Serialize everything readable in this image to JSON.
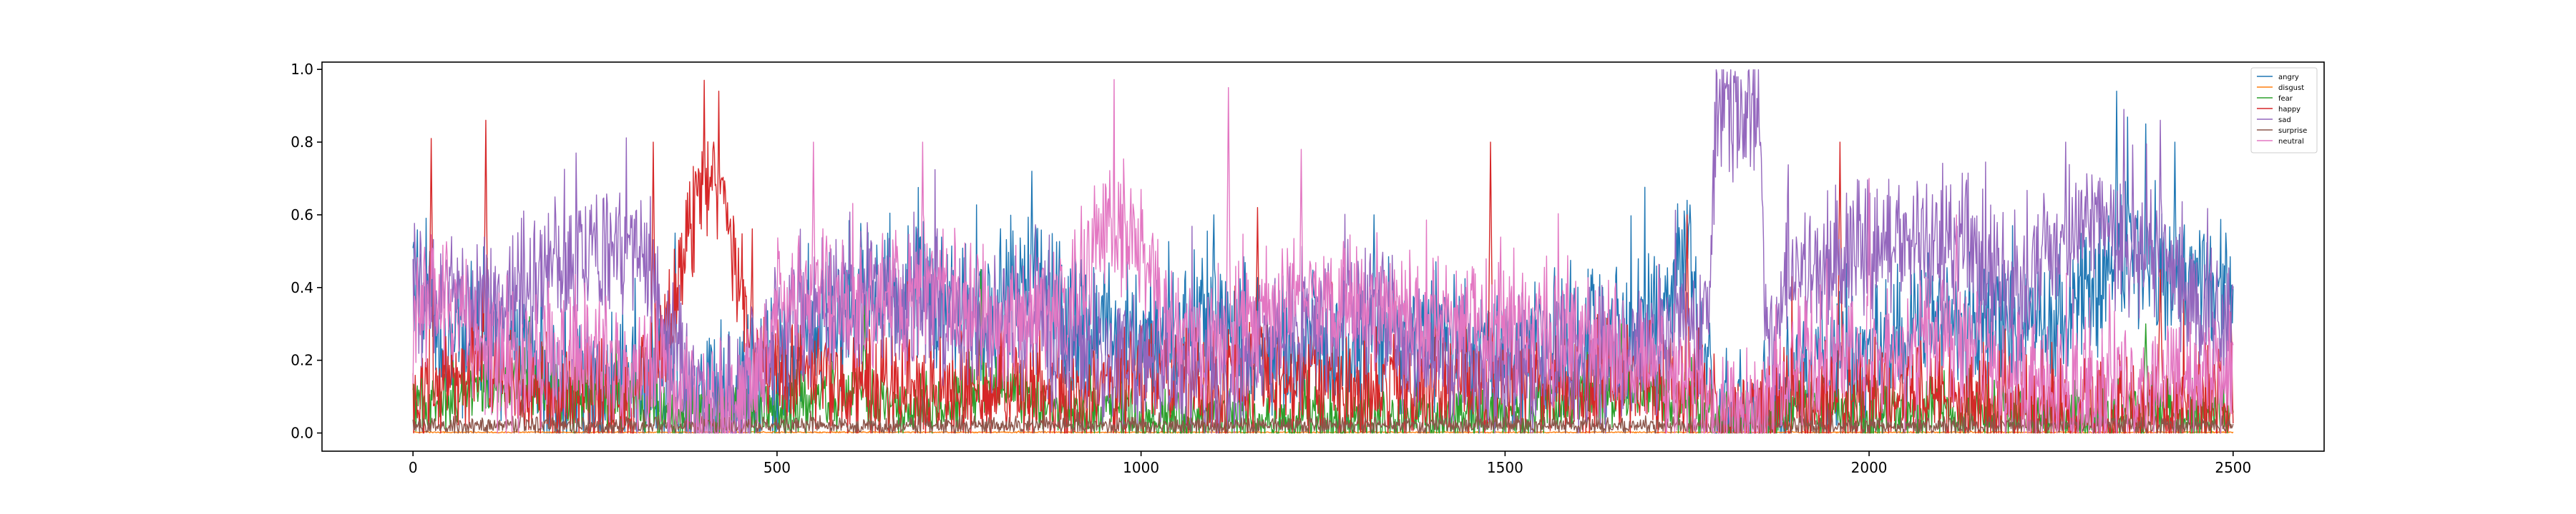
{
  "chart_data": {
    "type": "line",
    "title": "",
    "xlabel": "",
    "ylabel": "",
    "xlim": [
      -125,
      2625
    ],
    "ylim": [
      -0.05,
      1.02
    ],
    "n_points": 2501,
    "x_ticks": [
      0,
      500,
      1000,
      1500,
      2000,
      2500
    ],
    "x_tick_labels": [
      "0",
      "500",
      "1000",
      "1500",
      "2000",
      "2500"
    ],
    "y_ticks": [
      0.0,
      0.2,
      0.4,
      0.6,
      0.8,
      1.0
    ],
    "y_tick_labels": [
      "0.0",
      "0.2",
      "0.4",
      "0.6",
      "0.8",
      "1.0"
    ],
    "grid": false,
    "legend_position": "top-right",
    "series": [
      {
        "name": "angry",
        "color": "#1f77b4",
        "knots": [
          [
            0,
            0.45
          ],
          [
            50,
            0.2
          ],
          [
            100,
            0.3
          ],
          [
            150,
            0.2
          ],
          [
            200,
            0.1
          ],
          [
            300,
            0.15
          ],
          [
            400,
            0.08
          ],
          [
            500,
            0.15
          ],
          [
            600,
            0.35
          ],
          [
            700,
            0.4
          ],
          [
            800,
            0.3
          ],
          [
            850,
            0.45
          ],
          [
            900,
            0.3
          ],
          [
            1000,
            0.25
          ],
          [
            1100,
            0.3
          ],
          [
            1200,
            0.2
          ],
          [
            1300,
            0.22
          ],
          [
            1400,
            0.25
          ],
          [
            1500,
            0.22
          ],
          [
            1600,
            0.25
          ],
          [
            1700,
            0.3
          ],
          [
            1750,
            0.45
          ],
          [
            1790,
            0.03
          ],
          [
            1850,
            0.03
          ],
          [
            1900,
            0.15
          ],
          [
            2000,
            0.2
          ],
          [
            2100,
            0.28
          ],
          [
            2200,
            0.3
          ],
          [
            2300,
            0.35
          ],
          [
            2350,
            0.5
          ],
          [
            2400,
            0.4
          ],
          [
            2450,
            0.42
          ],
          [
            2500,
            0.35
          ]
        ],
        "noise": 0.16,
        "spikes": [
          [
            360,
            0.55
          ],
          [
            850,
            0.72
          ],
          [
            1100,
            0.6
          ],
          [
            1320,
            0.6
          ],
          [
            1750,
            0.64
          ],
          [
            2340,
            0.94
          ],
          [
            2380,
            0.85
          ],
          [
            2420,
            0.8
          ],
          [
            2490,
            0.55
          ]
        ]
      },
      {
        "name": "disgust",
        "color": "#ff7f0e",
        "knots": [
          [
            0,
            0.002
          ],
          [
            2500,
            0.002
          ]
        ],
        "noise": 0.0015,
        "spikes": []
      },
      {
        "name": "fear",
        "color": "#2ca02c",
        "knots": [
          [
            0,
            0.08
          ],
          [
            100,
            0.12
          ],
          [
            150,
            0.15
          ],
          [
            200,
            0.1
          ],
          [
            300,
            0.08
          ],
          [
            400,
            0.04
          ],
          [
            500,
            0.06
          ],
          [
            600,
            0.1
          ],
          [
            650,
            0.08
          ],
          [
            700,
            0.06
          ],
          [
            800,
            0.12
          ],
          [
            900,
            0.07
          ],
          [
            1000,
            0.04
          ],
          [
            1100,
            0.04
          ],
          [
            1200,
            0.03
          ],
          [
            1300,
            0.03
          ],
          [
            1400,
            0.04
          ],
          [
            1500,
            0.05
          ],
          [
            1600,
            0.1
          ],
          [
            1700,
            0.12
          ],
          [
            1800,
            0.03
          ],
          [
            1850,
            0.02
          ],
          [
            1900,
            0.08
          ],
          [
            2000,
            0.05
          ],
          [
            2100,
            0.06
          ],
          [
            2200,
            0.05
          ],
          [
            2300,
            0.04
          ],
          [
            2400,
            0.06
          ],
          [
            2500,
            0.05
          ]
        ],
        "noise": 0.07,
        "spikes": [
          [
            160,
            0.32
          ],
          [
            620,
            0.35
          ],
          [
            780,
            0.45
          ],
          [
            1660,
            0.3
          ],
          [
            1940,
            0.2
          ],
          [
            2380,
            0.3
          ]
        ]
      },
      {
        "name": "happy",
        "color": "#d62728",
        "knots": [
          [
            0,
            0.05
          ],
          [
            50,
            0.15
          ],
          [
            100,
            0.2
          ],
          [
            200,
            0.1
          ],
          [
            300,
            0.1
          ],
          [
            350,
            0.3
          ],
          [
            380,
            0.55
          ],
          [
            410,
            0.75
          ],
          [
            430,
            0.6
          ],
          [
            470,
            0.2
          ],
          [
            500,
            0.15
          ],
          [
            600,
            0.12
          ],
          [
            700,
            0.1
          ],
          [
            800,
            0.12
          ],
          [
            900,
            0.1
          ],
          [
            1000,
            0.15
          ],
          [
            1100,
            0.12
          ],
          [
            1200,
            0.15
          ],
          [
            1300,
            0.12
          ],
          [
            1400,
            0.15
          ],
          [
            1500,
            0.15
          ],
          [
            1600,
            0.12
          ],
          [
            1700,
            0.15
          ],
          [
            1800,
            0.03
          ],
          [
            1850,
            0.02
          ],
          [
            1900,
            0.1
          ],
          [
            2000,
            0.1
          ],
          [
            2100,
            0.1
          ],
          [
            2200,
            0.08
          ],
          [
            2300,
            0.06
          ],
          [
            2400,
            0.06
          ],
          [
            2500,
            0.1
          ]
        ],
        "noise": 0.13,
        "spikes": [
          [
            25,
            0.81
          ],
          [
            100,
            0.86
          ],
          [
            330,
            0.8
          ],
          [
            400,
            0.97
          ],
          [
            420,
            0.94
          ],
          [
            1160,
            0.62
          ],
          [
            1480,
            0.8
          ],
          [
            1750,
            0.6
          ],
          [
            1960,
            0.8
          ],
          [
            2400,
            0.45
          ]
        ]
      },
      {
        "name": "sad",
        "color": "#9467bd",
        "knots": [
          [
            0,
            0.4
          ],
          [
            100,
            0.35
          ],
          [
            200,
            0.45
          ],
          [
            300,
            0.5
          ],
          [
            350,
            0.3
          ],
          [
            400,
            0.05
          ],
          [
            450,
            0.05
          ],
          [
            500,
            0.3
          ],
          [
            600,
            0.4
          ],
          [
            700,
            0.35
          ],
          [
            800,
            0.3
          ],
          [
            900,
            0.25
          ],
          [
            1000,
            0.2
          ],
          [
            1100,
            0.15
          ],
          [
            1200,
            0.25
          ],
          [
            1300,
            0.35
          ],
          [
            1400,
            0.2
          ],
          [
            1500,
            0.15
          ],
          [
            1600,
            0.2
          ],
          [
            1700,
            0.25
          ],
          [
            1780,
            0.3
          ],
          [
            1790,
            0.88
          ],
          [
            1850,
            0.88
          ],
          [
            1860,
            0.2
          ],
          [
            1900,
            0.45
          ],
          [
            2000,
            0.5
          ],
          [
            2100,
            0.55
          ],
          [
            2200,
            0.4
          ],
          [
            2300,
            0.6
          ],
          [
            2400,
            0.45
          ],
          [
            2500,
            0.3
          ]
        ],
        "noise": 0.16,
        "spikes": [
          [
            1800,
            0.95
          ],
          [
            1840,
            0.93
          ],
          [
            2270,
            0.8
          ],
          [
            2350,
            0.89
          ],
          [
            2400,
            0.86
          ]
        ]
      },
      {
        "name": "surprise",
        "color": "#8c564b",
        "knots": [
          [
            0,
            0.02
          ],
          [
            2500,
            0.02
          ]
        ],
        "noise": 0.02,
        "spikes": [
          [
            150,
            0.1
          ],
          [
            700,
            0.1
          ],
          [
            1300,
            0.08
          ],
          [
            2300,
            0.08
          ]
        ]
      },
      {
        "name": "neutral",
        "color": "#e377c2",
        "knots": [
          [
            0,
            0.3
          ],
          [
            50,
            0.4
          ],
          [
            100,
            0.2
          ],
          [
            200,
            0.2
          ],
          [
            300,
            0.2
          ],
          [
            400,
            0.05
          ],
          [
            450,
            0.05
          ],
          [
            500,
            0.35
          ],
          [
            550,
            0.4
          ],
          [
            600,
            0.3
          ],
          [
            700,
            0.4
          ],
          [
            800,
            0.3
          ],
          [
            900,
            0.35
          ],
          [
            950,
            0.6
          ],
          [
            1000,
            0.5
          ],
          [
            1050,
            0.25
          ],
          [
            1100,
            0.25
          ],
          [
            1200,
            0.35
          ],
          [
            1300,
            0.35
          ],
          [
            1400,
            0.3
          ],
          [
            1500,
            0.3
          ],
          [
            1600,
            0.25
          ],
          [
            1700,
            0.2
          ],
          [
            1790,
            0.03
          ],
          [
            1850,
            0.03
          ],
          [
            1900,
            0.2
          ],
          [
            2000,
            0.2
          ],
          [
            2100,
            0.25
          ],
          [
            2200,
            0.15
          ],
          [
            2300,
            0.1
          ],
          [
            2400,
            0.15
          ],
          [
            2500,
            0.15
          ]
        ],
        "noise": 0.15,
        "spikes": [
          [
            550,
            0.8
          ],
          [
            700,
            0.8
          ],
          [
            1000,
            0.67
          ],
          [
            1120,
            0.95
          ],
          [
            1220,
            0.78
          ],
          [
            2000,
            0.7
          ],
          [
            2120,
            0.6
          ]
        ]
      }
    ]
  }
}
